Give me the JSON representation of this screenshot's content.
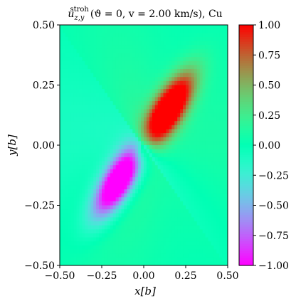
{
  "chart_data": {
    "type": "heatmap",
    "title": "u_{z,y}^{stroh}(ϑ=0, v=2.00 km/s), Cu",
    "title_parts": {
      "symbol": "u",
      "subscript": "z,y",
      "superscript": "stroh",
      "args": "(ϑ = 0, v = 2.00 km/s), Cu"
    },
    "xlabel": "x[b]",
    "ylabel": "y[b]",
    "xlim": [
      -0.5,
      0.5
    ],
    "ylim": [
      -0.5,
      0.5
    ],
    "xticks": [
      "−0.50",
      "−0.25",
      "0.00",
      "0.25",
      "0.50"
    ],
    "yticks": [
      "−0.50",
      "−0.25",
      "0.00",
      "0.25",
      "0.50"
    ],
    "colorbar": {
      "range": [
        -1.0,
        1.0
      ],
      "ticks": [
        "−1.00",
        "−0.75",
        "−0.50",
        "−0.25",
        "0.00",
        "0.25",
        "0.50",
        "0.75",
        "1.00"
      ],
      "colormap": "rainbow"
    },
    "grid": false,
    "field_description": "lobes along diagonal: positive upper-right, negative lower-left, singular at origin"
  }
}
